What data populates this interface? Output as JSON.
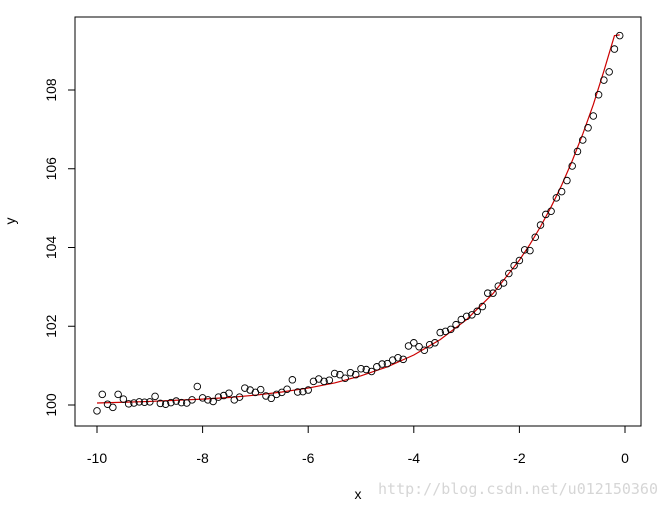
{
  "chart_data": {
    "type": "scatter",
    "title": "",
    "xlabel": "x",
    "ylabel": "y",
    "xlim": [
      -10.5,
      0.3
    ],
    "ylim": [
      99.5,
      109.8
    ],
    "x_ticks": [
      -10,
      -8,
      -6,
      -4,
      -2,
      0
    ],
    "y_ticks": [
      100,
      102,
      104,
      106,
      108
    ],
    "x_tick_labels": [
      "-10",
      "-8",
      "-6",
      "-4",
      "-2",
      "0"
    ],
    "y_tick_labels": [
      "100",
      "102",
      "104",
      "106",
      "108"
    ],
    "grid": false,
    "legend": "none",
    "series": [
      {
        "kind": "points",
        "marker": "open-circle",
        "color": "#000000",
        "x": [
          -10.0,
          -9.9,
          -9.8,
          -9.7,
          -9.6,
          -9.5,
          -9.4,
          -9.3,
          -9.2,
          -9.1,
          -9.0,
          -8.9,
          -8.8,
          -8.7,
          -8.6,
          -8.5,
          -8.4,
          -8.3,
          -8.2,
          -8.1,
          -8.0,
          -7.9,
          -7.8,
          -7.7,
          -7.6,
          -7.5,
          -7.4,
          -7.3,
          -7.2,
          -7.1,
          -7.0,
          -6.9,
          -6.8,
          -6.7,
          -6.6,
          -6.5,
          -6.4,
          -6.3,
          -6.2,
          -6.1,
          -6.0,
          -5.9,
          -5.8,
          -5.7,
          -5.6,
          -5.5,
          -5.4,
          -5.3,
          -5.2,
          -5.1,
          -5.0,
          -4.9,
          -4.8,
          -4.7,
          -4.6,
          -4.5,
          -4.4,
          -4.3,
          -4.2,
          -4.1,
          -4.0,
          -3.9,
          -3.8,
          -3.7,
          -3.6,
          -3.5,
          -3.4,
          -3.3,
          -3.2,
          -3.1,
          -3.0,
          -2.9,
          -2.8,
          -2.7,
          -2.6,
          -2.5,
          -2.4,
          -2.3,
          -2.2,
          -2.1,
          -2.0,
          -1.9,
          -1.8,
          -1.7,
          -1.6,
          -1.5,
          -1.4,
          -1.3,
          -1.2,
          -1.1,
          -1.0,
          -0.9,
          -0.8,
          -0.7,
          -0.6,
          -0.5,
          -0.4,
          -0.3,
          -0.2,
          -0.1
        ],
        "y": [
          99.85,
          100.27,
          100.02,
          99.94,
          100.27,
          100.15,
          100.03,
          100.05,
          100.08,
          100.07,
          100.08,
          100.22,
          100.04,
          100.02,
          100.06,
          100.1,
          100.06,
          100.05,
          100.13,
          100.47,
          100.18,
          100.13,
          100.09,
          100.2,
          100.24,
          100.3,
          100.13,
          100.2,
          100.43,
          100.38,
          100.32,
          100.39,
          100.23,
          100.17,
          100.27,
          100.32,
          100.4,
          100.64,
          100.33,
          100.34,
          100.38,
          100.6,
          100.66,
          100.6,
          100.63,
          100.8,
          100.77,
          100.68,
          100.82,
          100.77,
          100.92,
          100.9,
          100.85,
          100.97,
          101.04,
          101.05,
          101.14,
          101.2,
          101.16,
          101.5,
          101.58,
          101.48,
          101.39,
          101.53,
          101.58,
          101.84,
          101.87,
          101.92,
          102.04,
          102.17,
          102.25,
          102.29,
          102.38,
          102.5,
          102.84,
          102.84,
          103.02,
          103.1,
          103.34,
          103.54,
          103.67,
          103.94,
          103.92,
          104.26,
          104.57,
          104.84,
          104.92,
          105.26,
          105.42,
          105.7,
          106.07,
          106.44,
          106.73,
          107.04,
          107.34,
          107.88,
          108.25,
          108.46,
          109.04,
          109.38
        ]
      },
      {
        "kind": "fitted-line",
        "color": "#cc0000",
        "x": [
          -10.0,
          -9.5,
          -9.0,
          -8.5,
          -8.0,
          -7.5,
          -7.0,
          -6.5,
          -6.0,
          -5.5,
          -5.0,
          -4.5,
          -4.0,
          -3.5,
          -3.0,
          -2.5,
          -2.0,
          -1.8,
          -1.6,
          -1.4,
          -1.2,
          -1.0,
          -0.8,
          -0.6,
          -0.4,
          -0.2,
          -0.1
        ],
        "y": [
          100.05,
          100.07,
          100.09,
          100.12,
          100.15,
          100.19,
          100.25,
          100.33,
          100.43,
          100.56,
          100.74,
          100.97,
          101.27,
          101.66,
          102.17,
          102.83,
          103.68,
          104.08,
          104.53,
          105.03,
          105.58,
          106.2,
          106.88,
          107.63,
          108.48,
          109.38,
          109.4
        ]
      }
    ]
  },
  "watermark": {
    "text": "http://blog.csdn.net/u012150360"
  }
}
